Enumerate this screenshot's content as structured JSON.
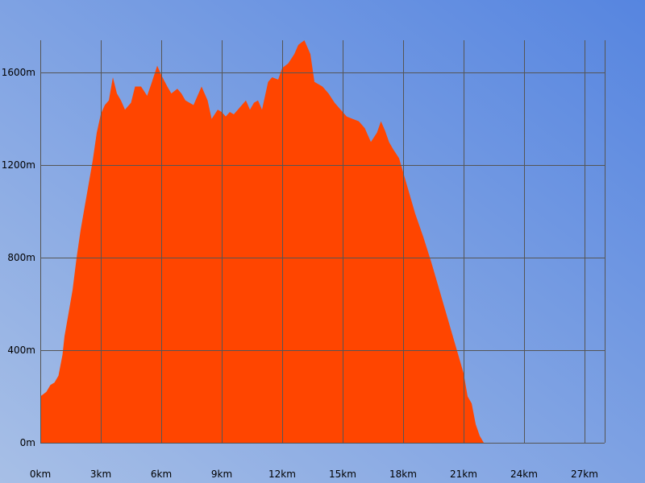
{
  "colors": {
    "bg_start": "#a7bfe6",
    "bg_end": "#5685e0",
    "fill": "#ff4500",
    "grid": "#555555"
  },
  "chart_data": {
    "type": "area",
    "xlabel": "",
    "ylabel": "",
    "xlim": [
      0,
      28
    ],
    "ylim": [
      0,
      1740
    ],
    "grid": true,
    "xticks": [
      0,
      3,
      6,
      9,
      12,
      15,
      18,
      21,
      24,
      27
    ],
    "xtick_labels": [
      "0km",
      "3km",
      "6km",
      "9km",
      "12km",
      "15km",
      "18km",
      "21km",
      "24km",
      "27km"
    ],
    "yticks": [
      0,
      400,
      800,
      1200,
      1600
    ],
    "ytick_labels": [
      "0m",
      "400m",
      "800m",
      "1200m",
      "1600m"
    ],
    "series": [
      {
        "x": [
          0,
          0.3,
          0.5,
          0.7,
          0.9,
          1.1,
          1.2,
          1.4,
          1.6,
          1.8,
          2.0,
          2.2,
          2.4,
          2.6,
          2.8,
          3.0,
          3.2,
          3.4,
          3.6,
          3.8,
          4.0,
          4.2,
          4.5,
          4.7,
          5.0,
          5.3,
          5.5,
          5.8,
          6.0,
          6.3,
          6.5,
          6.8,
          7.0,
          7.2,
          7.4,
          7.6,
          7.8,
          8.0,
          8.3,
          8.5,
          8.8,
          9.0,
          9.2,
          9.4,
          9.6,
          9.8,
          10.0,
          10.2,
          10.4,
          10.6,
          10.8,
          11.0,
          11.3,
          11.5,
          11.8,
          12.0,
          12.3,
          12.6,
          12.8,
          13.1,
          13.4,
          13.6,
          14.0,
          14.3,
          14.6,
          14.9,
          15.2,
          15.5,
          15.8,
          16.1,
          16.4,
          16.7,
          16.9,
          17.1,
          17.3,
          17.5,
          17.8,
          18.2,
          18.6,
          19.0,
          19.4,
          19.8,
          20.2,
          20.6,
          21.0,
          21.2,
          21.4,
          21.6,
          21.8,
          22.0,
          22.3,
          22.6,
          23.0,
          23.4,
          23.8,
          24.2,
          24.6,
          25.0,
          25.4,
          25.8,
          26.2,
          26.6,
          27.0,
          27.3,
          27.6,
          27.9
        ],
        "y": [
          200,
          220,
          250,
          260,
          290,
          380,
          460,
          560,
          660,
          800,
          920,
          1020,
          1120,
          1220,
          1340,
          1420,
          1460,
          1480,
          1580,
          1510,
          1480,
          1440,
          1470,
          1540,
          1540,
          1500,
          1550,
          1630,
          1590,
          1540,
          1510,
          1530,
          1510,
          1480,
          1470,
          1460,
          1500,
          1540,
          1480,
          1400,
          1440,
          1430,
          1410,
          1430,
          1420,
          1440,
          1460,
          1480,
          1440,
          1470,
          1480,
          1440,
          1560,
          1580,
          1570,
          1620,
          1640,
          1680,
          1720,
          1740,
          1680,
          1560,
          1540,
          1510,
          1470,
          1440,
          1410,
          1400,
          1390,
          1360,
          1300,
          1340,
          1390,
          1350,
          1300,
          1270,
          1230,
          1110,
          990,
          890,
          780,
          660,
          540,
          420,
          300,
          200,
          170,
          80,
          30,
          0,
          0,
          0,
          0,
          0,
          0,
          0,
          0,
          0,
          0,
          0,
          0,
          0,
          0,
          0,
          0,
          0
        ]
      }
    ]
  }
}
